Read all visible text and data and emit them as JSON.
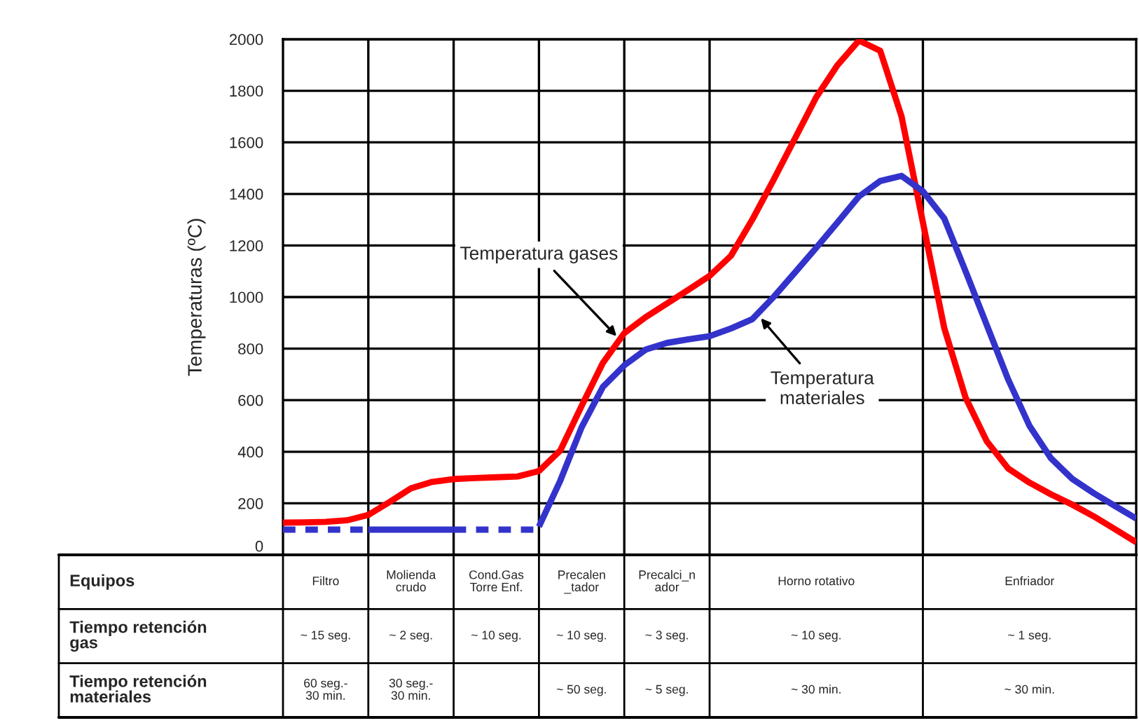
{
  "chart_data": {
    "type": "line",
    "ylabel": "Temperaturas (ºC)",
    "categories": [
      null,
      null,
      null,
      null,
      null,
      null,
      null,
      null,
      null,
      null,
      null,
      null,
      null,
      null,
      null,
      null,
      null,
      null,
      null,
      null,
      null,
      null,
      null,
      null,
      null,
      null,
      null,
      null,
      null,
      null,
      null,
      null,
      null,
      null,
      null,
      null,
      null,
      null,
      null,
      null,
      null
    ],
    "ylim": [
      0,
      2000
    ],
    "yticks": [
      0,
      200,
      400,
      600,
      800,
      1000,
      1200,
      1400,
      1600,
      1800,
      2000
    ],
    "grid": true,
    "tick_labels": "y",
    "series": [
      {
        "color": "#ff0000",
        "line_style": "solid",
        "values": [
          125,
          126,
          128,
          134,
          155,
          205,
          258,
          283,
          294,
          298,
          301,
          304,
          325,
          405,
          578,
          745,
          860,
          922,
          975,
          1028,
          1082,
          1160,
          1300,
          1455,
          1615,
          1775,
          1900,
          1995,
          1955,
          1700,
          1290,
          880,
          610,
          440,
          335,
          280,
          235,
          195,
          150,
          100,
          49
        ]
      },
      {
        "color": "#3333cc",
        "line_style": "dashed",
        "values": [
          98,
          98,
          98,
          98,
          98,
          null,
          null,
          null,
          null,
          null,
          null,
          null,
          null,
          null,
          null,
          null,
          null,
          null,
          null,
          null,
          null,
          null,
          null,
          null,
          null,
          null,
          null,
          null,
          null,
          null,
          null,
          null,
          null,
          null,
          null,
          null,
          null,
          null,
          null,
          null,
          null
        ]
      },
      {
        "color": "#3333cc",
        "line_style": "solid",
        "values": [
          null,
          null,
          null,
          null,
          98,
          98,
          98,
          98,
          98,
          null,
          null,
          null,
          null,
          null,
          null,
          null,
          null,
          null,
          null,
          null,
          null,
          null,
          null,
          null,
          null,
          null,
          null,
          null,
          null,
          null,
          null,
          null,
          null,
          null,
          null,
          null,
          null,
          null,
          null,
          null,
          null
        ]
      },
      {
        "color": "#3333cc",
        "line_style": "dashed",
        "values": [
          null,
          null,
          null,
          null,
          null,
          null,
          null,
          null,
          98,
          98,
          98,
          98,
          98,
          null,
          null,
          null,
          null,
          null,
          null,
          null,
          null,
          null,
          null,
          null,
          null,
          null,
          null,
          null,
          null,
          null,
          null,
          null,
          null,
          null,
          null,
          null,
          null,
          null,
          null,
          null,
          null
        ]
      },
      {
        "color": "#3333cc",
        "line_style": "solid",
        "values": [
          null,
          null,
          null,
          null,
          null,
          null,
          null,
          null,
          null,
          null,
          null,
          null,
          110,
          288,
          495,
          652,
          735,
          796,
          822,
          836,
          848,
          878,
          914,
          1000,
          1095,
          1191,
          1290,
          1390,
          1450,
          1470,
          1410,
          1305,
          1100,
          890,
          680,
          500,
          375,
          295,
          240,
          190,
          141
        ]
      }
    ],
    "annotations": [
      "Temperatura gases",
      "Temperatura\nmateriales",
      "Equipos",
      "Filtro",
      "Molienda\ncrudo",
      "Cond.Gas\nTorre Enf.",
      "Precalen\n_tador",
      "Precalci_n\nador",
      "Horno rotativo",
      "Enfriador",
      "Tiempo retención\ngas",
      "~ 15 seg.",
      "~ 2 seg.",
      "~ 10 seg.",
      "~ 10 seg.",
      "~ 3 seg.",
      "~ 10 seg.",
      "~ 1 seg.",
      "Tiempo retención\nmateriales",
      "60 seg.-\n30 min.",
      "30 seg.-\n30 min.",
      null,
      "~ 50 seg.",
      "~ 5 seg.",
      "~ 30 min.",
      "~ 30 min."
    ]
  }
}
